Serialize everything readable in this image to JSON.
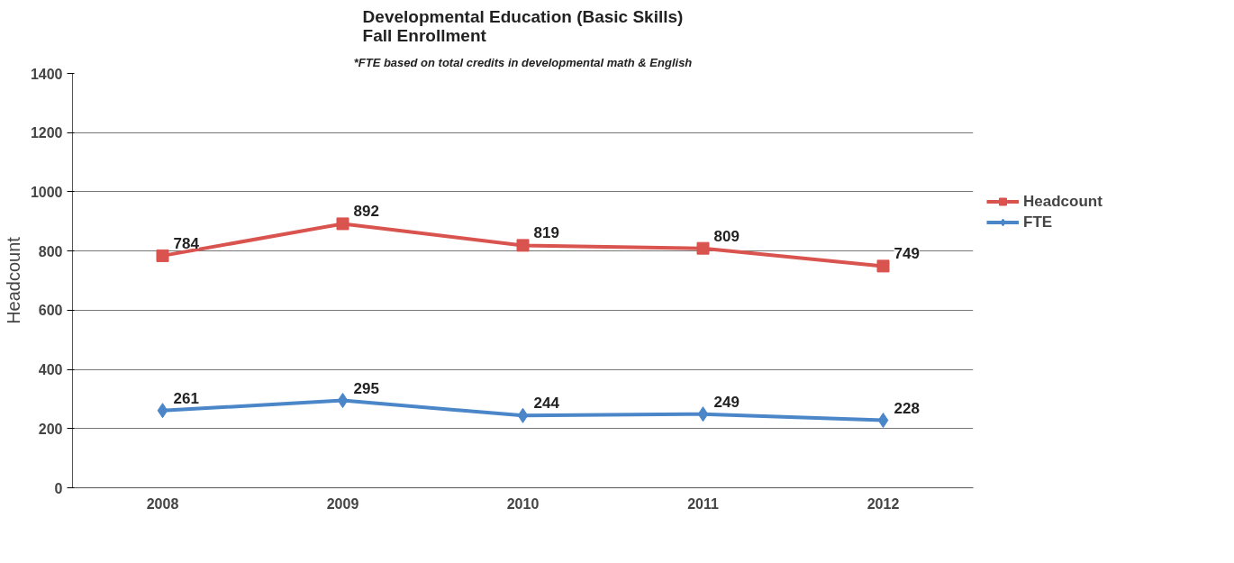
{
  "chart_data": {
    "type": "line",
    "title": "Developmental Education (Basic Skills)\nFall Enrollment",
    "subtitle": "*FTE based on total credits in developmental math & English",
    "ylabel": "Headcount",
    "categories": [
      "2008",
      "2009",
      "2010",
      "2011",
      "2012"
    ],
    "series": [
      {
        "name": "Headcount",
        "color": "#d9534f",
        "marker": "square",
        "values": [
          784,
          892,
          819,
          809,
          749
        ]
      },
      {
        "name": "FTE",
        "color": "#4a86c8",
        "marker": "diamond",
        "values": [
          261,
          295,
          244,
          249,
          228
        ]
      }
    ],
    "data_labels": true,
    "ylim": [
      0,
      1400
    ],
    "yticks": [
      0,
      200,
      400,
      600,
      800,
      1000,
      1200,
      1400
    ],
    "grid": "y",
    "legend": "right"
  }
}
